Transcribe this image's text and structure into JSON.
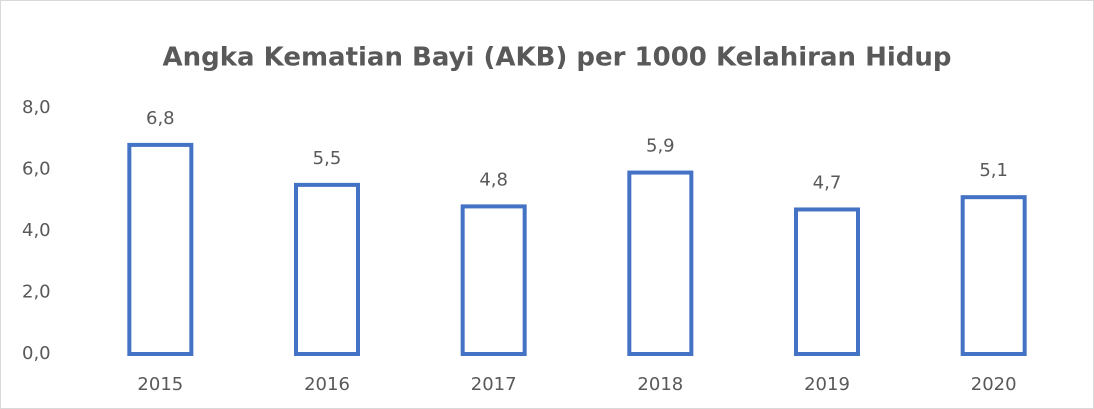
{
  "chart_data": {
    "type": "bar",
    "title": "Angka Kematian Bayi (AKB) per 1000 Kelahiran Hidup",
    "categories": [
      "2015",
      "2016",
      "2017",
      "2018",
      "2019",
      "2020"
    ],
    "values": [
      6.8,
      5.5,
      4.8,
      5.9,
      4.7,
      5.1
    ],
    "value_labels": [
      "6,8",
      "5,5",
      "4,8",
      "5,9",
      "4,7",
      "5,1"
    ],
    "color": "#4472c4",
    "ylim": [
      0,
      8
    ],
    "yticks": [
      {
        "value": 0,
        "label": "0,0"
      },
      {
        "value": 2,
        "label": "2,0"
      },
      {
        "value": 4,
        "label": "4,0"
      },
      {
        "value": 6,
        "label": "6,0"
      },
      {
        "value": 8,
        "label": "8,0"
      }
    ],
    "grid": false
  }
}
